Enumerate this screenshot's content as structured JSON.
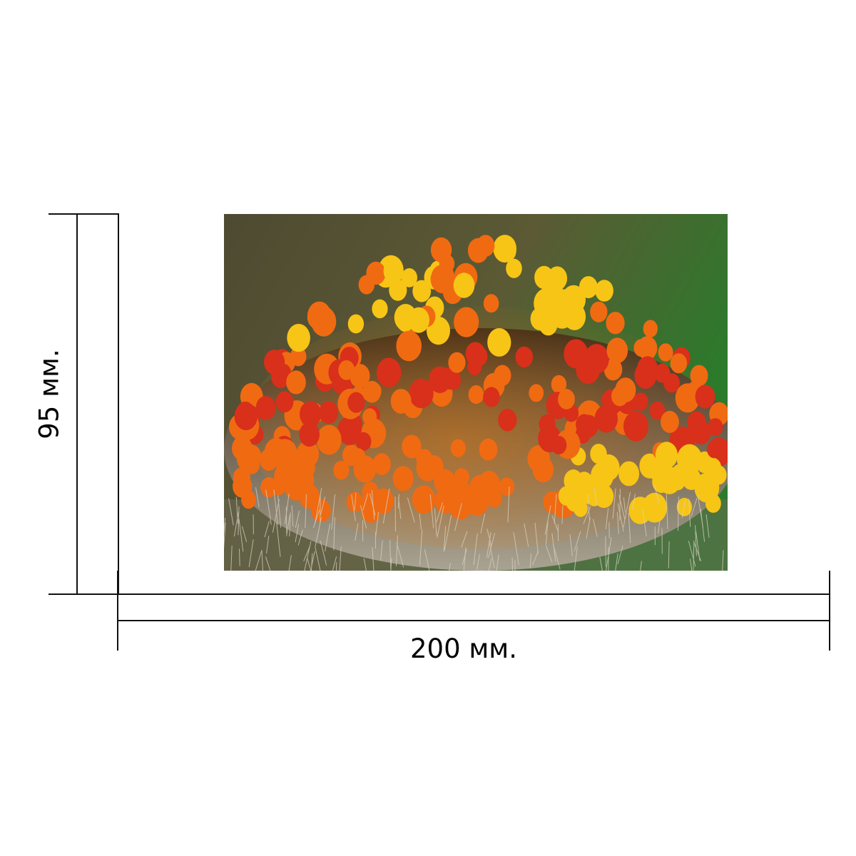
{
  "dimensions": {
    "width_label": "200 мм.",
    "height_label": "95 мм."
  },
  "product_image": {
    "subject": "willow-catkin-macro-photo",
    "colors": {
      "background_dark": "#5a5a35",
      "background_green": "#2f7a2a",
      "anther_yellow": "#f7c515",
      "anther_orange": "#f06a12",
      "anther_red": "#d8301a",
      "fuzz_gray": "#b9b09a"
    }
  }
}
